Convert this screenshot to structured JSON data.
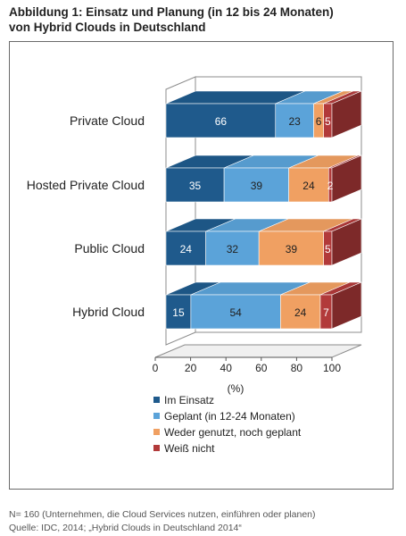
{
  "title_line1": "Abbildung 1:  Einsatz und Planung (in 12 bis 24 Monaten)",
  "title_line2": "von Hybrid Clouds in Deutschland",
  "footer_line1": "N= 160 (Unternehmen, die Cloud Services nutzen, einführen oder planen)",
  "footer_line2": "Quelle: IDC, 2014; „Hybrid Clouds in Deutschland 2014“",
  "chart_data": {
    "type": "bar",
    "orientation": "horizontal",
    "stacked": true,
    "style": "3d",
    "categories": [
      "Private Cloud",
      "Hosted Private Cloud",
      "Public Cloud",
      "Hybrid Cloud"
    ],
    "series": [
      {
        "name": "Im Einsatz",
        "values": [
          66,
          35,
          24,
          15
        ],
        "color": "#1f5a8c"
      },
      {
        "name": "Geplant (in 12-24 Monaten)",
        "values": [
          23,
          39,
          32,
          54
        ],
        "color": "#5ba3d9"
      },
      {
        "name": "Weder genutzt, noch geplant",
        "values": [
          6,
          24,
          39,
          24
        ],
        "color": "#f0a062"
      },
      {
        "name": "Weiß nicht",
        "values": [
          5,
          2,
          5,
          7
        ],
        "color": "#b23a3a"
      }
    ],
    "xlabel": "(%)",
    "xlim": [
      0,
      100
    ],
    "xticks": [
      0,
      20,
      40,
      60,
      80,
      100
    ],
    "legend_position": "bottom"
  }
}
